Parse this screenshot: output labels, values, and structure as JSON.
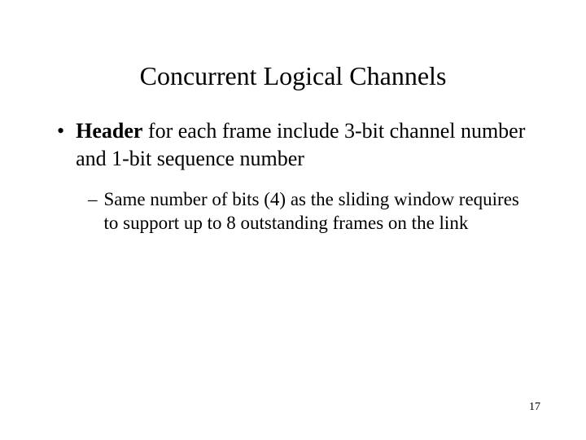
{
  "title": "Concurrent Logical Channels",
  "main": {
    "bold": "Header",
    "rest": " for each frame include 3-bit channel number and 1-bit sequence number"
  },
  "sub": "Same number of bits (4) as the sliding window requires to support up to 8 outstanding frames on the link",
  "bullet_char": "•",
  "dash_char": "–",
  "page_number": "17",
  "colors": {
    "background": "#ffffff",
    "text": "#000000"
  },
  "typography": {
    "font_family": "Times New Roman",
    "title_fontsize": 32,
    "main_fontsize": 26,
    "sub_fontsize": 23,
    "page_fontsize": 14
  }
}
